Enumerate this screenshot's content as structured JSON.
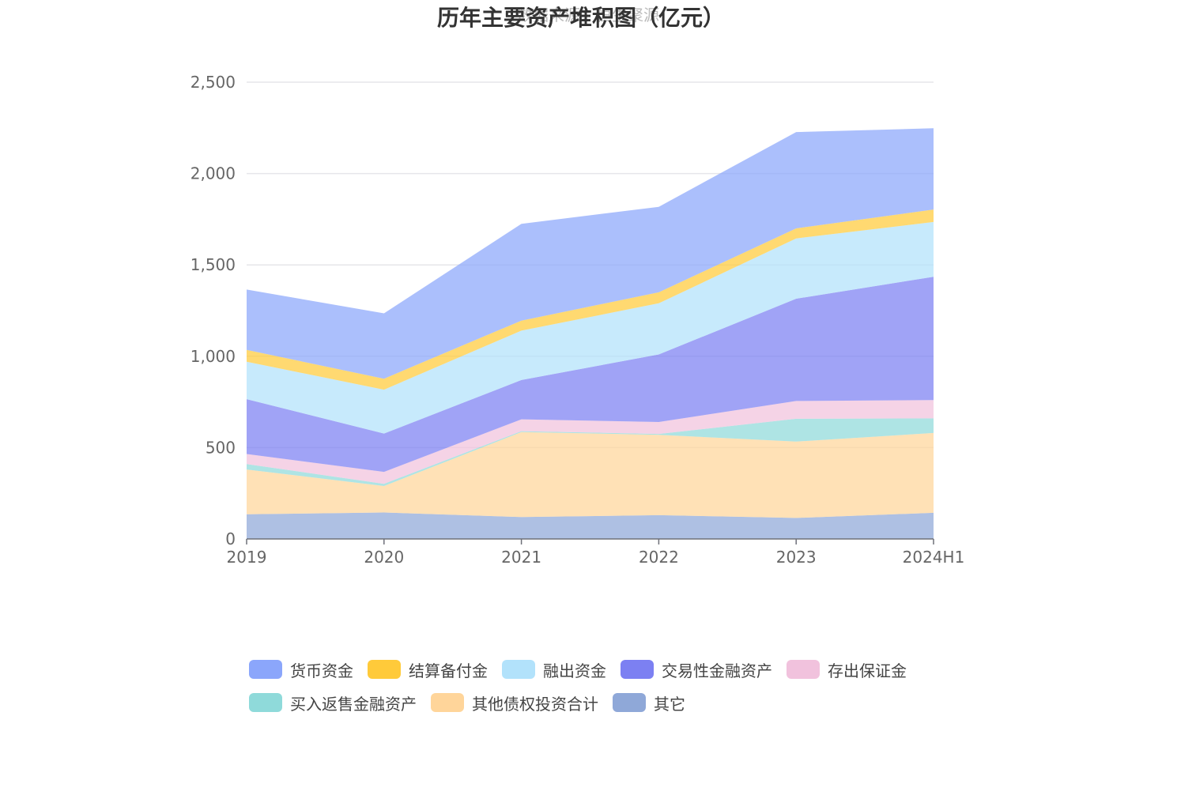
{
  "chart_data": {
    "type": "area",
    "stacked": true,
    "title": "历年主要资产堆积图（亿元）",
    "watermark": "数据来源：恒生聚源",
    "categories": [
      "2019",
      "2020",
      "2021",
      "2022",
      "2023",
      "2024H1"
    ],
    "ylim": [
      0,
      2500
    ],
    "yticks": [
      0,
      500,
      1000,
      1500,
      2000,
      2500
    ],
    "ytick_labels": [
      "0",
      "500",
      "1,000",
      "1,500",
      "2,000",
      "2,500"
    ],
    "grid": true,
    "legend_position": "bottom",
    "series": [
      {
        "name": "其它",
        "color": "#8fa8d8",
        "values": [
          135,
          145,
          120,
          130,
          115,
          143
        ]
      },
      {
        "name": "其他债权投资合计",
        "color": "#ffd59a",
        "values": [
          245,
          145,
          465,
          440,
          418,
          437
        ]
      },
      {
        "name": "买入返售金融资产",
        "color": "#8fdada",
        "values": [
          30,
          12,
          5,
          5,
          125,
          80
        ]
      },
      {
        "name": "存出保证金",
        "color": "#f1c2dd",
        "values": [
          55,
          65,
          65,
          65,
          97,
          100
        ]
      },
      {
        "name": "交易性金融资产",
        "color": "#7c80f2",
        "values": [
          300,
          210,
          215,
          370,
          560,
          675
        ]
      },
      {
        "name": "融出资金",
        "color": "#b2e2fb",
        "values": [
          205,
          240,
          270,
          280,
          330,
          300
        ]
      },
      {
        "name": "结算备付金",
        "color": "#ffca3a",
        "values": [
          65,
          60,
          55,
          60,
          55,
          68
        ]
      },
      {
        "name": "货币资金",
        "color": "#8ba6fb",
        "values": [
          330,
          358,
          530,
          468,
          527,
          445
        ]
      }
    ],
    "legend_order": [
      "货币资金",
      "结算备付金",
      "融出资金",
      "交易性金融资产",
      "存出保证金",
      "买入返售金融资产",
      "其他债权投资合计",
      "其它"
    ]
  }
}
